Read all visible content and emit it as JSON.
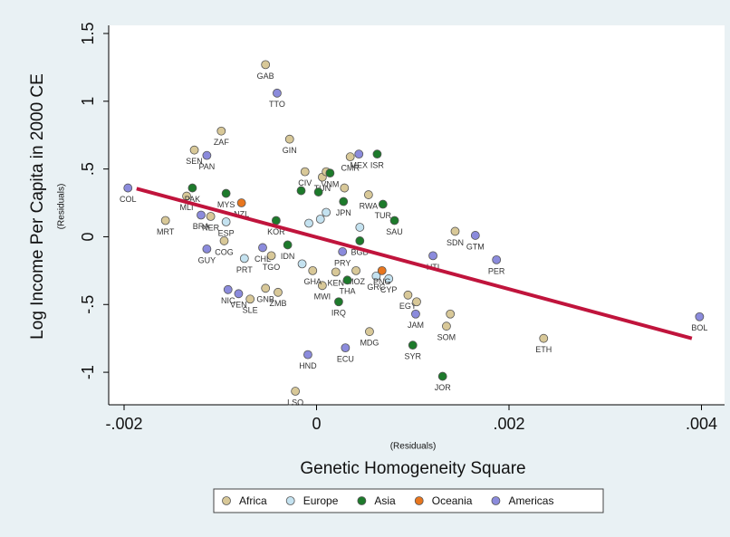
{
  "chart_data": {
    "type": "scatter",
    "y_title": "Log Income Per Capita in 2000 CE",
    "y_subtitle": "(Residuals)",
    "x_subtitle": "(Residuals)",
    "x_title": "Genetic Homogeneity Square",
    "xlim": [
      -0.00216,
      0.00424
    ],
    "ylim": [
      -1.24,
      1.56
    ],
    "xticks": [
      {
        "value": -0.002,
        "label": "-.002"
      },
      0,
      {
        "value": 0.002,
        "label": ".002"
      },
      {
        "value": 0.004,
        "label": ".004"
      }
    ],
    "yticks": [
      {
        "value": -1,
        "label": "-1"
      },
      {
        "value": -0.5,
        "label": "-.5"
      },
      0,
      {
        "value": 0.5,
        "label": ".5"
      },
      1,
      1.5
    ],
    "fit_line": {
      "color": "#c0143c",
      "x": [
        -0.00187,
        0.0039
      ],
      "y": [
        0.355,
        -0.75
      ]
    },
    "legend": "bottom",
    "series": [
      {
        "name": "Africa",
        "color": "#d8c898",
        "labels": [
          "GAB",
          "GIN",
          "ZAF",
          "SEN",
          "MRT",
          "MLI",
          "NER",
          "COG",
          "SLE",
          "GNB",
          "ZMB",
          "TGO",
          "CIV",
          "TUN",
          "CMR",
          "RWA",
          "SDN",
          "ETH",
          "EGY",
          "SOM",
          "MDG",
          "LSO",
          "MWI",
          "GHA",
          "KEN",
          "MOZ",
          null,
          null,
          null,
          null
        ],
        "x": [
          -0.00053,
          -0.00028,
          -0.00099,
          -0.00127,
          -0.00157,
          -0.00135,
          -0.0011,
          -0.00096,
          -0.00069,
          -0.00053,
          -0.0004,
          -0.00047,
          -0.00012,
          6e-05,
          0.00035,
          0.00054,
          0.00144,
          0.00236,
          0.00095,
          0.00135,
          0.00055,
          -0.00022,
          6e-05,
          -4e-05,
          0.0002,
          0.00041,
          0.0001,
          0.00029,
          0.00104,
          0.00139
        ],
        "y": [
          1.27,
          0.72,
          0.78,
          0.64,
          0.12,
          0.3,
          0.15,
          -0.03,
          -0.46,
          -0.38,
          -0.41,
          -0.14,
          0.48,
          0.44,
          0.59,
          0.31,
          0.04,
          -0.75,
          -0.43,
          -0.66,
          -0.7,
          -1.14,
          -0.36,
          -0.25,
          -0.26,
          -0.25,
          0.48,
          0.36,
          -0.48,
          -0.57
        ]
      },
      {
        "name": "Europe",
        "color": "#c4e2f0",
        "labels": [
          "ESP",
          "PRT",
          "GRC",
          "CYP",
          null,
          null,
          null,
          null,
          null
        ],
        "x": [
          -0.00094,
          -0.00075,
          0.00062,
          0.00075,
          -8e-05,
          4e-05,
          0.0001,
          0.00045,
          -0.00015
        ],
        "y": [
          0.11,
          -0.16,
          -0.29,
          -0.31,
          0.1,
          0.13,
          0.18,
          0.07,
          -0.2
        ]
      },
      {
        "name": "Asia",
        "color": "#1d7a2b",
        "labels": [
          "MYS",
          "VNM",
          "ISR",
          "JPN",
          "TUR",
          "SAU",
          "BGD",
          "SYR",
          "JOR",
          "IRQ",
          "THA",
          "KOR",
          "IDN",
          "PAK",
          null,
          null
        ],
        "x": [
          -0.00094,
          0.00014,
          0.00063,
          0.00028,
          0.00069,
          0.00081,
          0.00045,
          0.001,
          0.00131,
          0.00023,
          0.00032,
          -0.00042,
          -0.0003,
          -0.00129,
          -0.00016,
          2e-05
        ],
        "y": [
          0.32,
          0.47,
          0.61,
          0.26,
          0.24,
          0.12,
          -0.03,
          -0.8,
          -1.03,
          -0.48,
          -0.32,
          0.12,
          -0.06,
          0.36,
          0.34,
          0.33
        ]
      },
      {
        "name": "Oceania",
        "color": "#e8761e",
        "labels": [
          "NZL",
          "PNG"
        ],
        "x": [
          -0.00078,
          0.00068
        ],
        "y": [
          0.25,
          -0.25
        ]
      },
      {
        "name": "Americas",
        "color": "#8b8bdc",
        "labels": [
          "TTO",
          "PAN",
          "COL",
          "BRA",
          "GUY",
          "CHL",
          "NIC",
          "VEN",
          "MEX",
          "PRY",
          "HTI",
          "GTM",
          "PER",
          "BOL",
          "JAM",
          "ECU",
          "HND"
        ],
        "x": [
          -0.00041,
          -0.00114,
          -0.00196,
          -0.0012,
          -0.00114,
          -0.00056,
          -0.00092,
          -0.00081,
          0.00044,
          0.00027,
          0.00121,
          0.00165,
          0.00187,
          0.00398,
          0.00103,
          0.0003,
          -9e-05
        ],
        "y": [
          1.06,
          0.6,
          0.36,
          0.16,
          -0.09,
          -0.08,
          -0.39,
          -0.42,
          0.61,
          -0.11,
          -0.14,
          0.01,
          -0.17,
          -0.59,
          -0.57,
          -0.82,
          -0.87
        ]
      }
    ]
  }
}
